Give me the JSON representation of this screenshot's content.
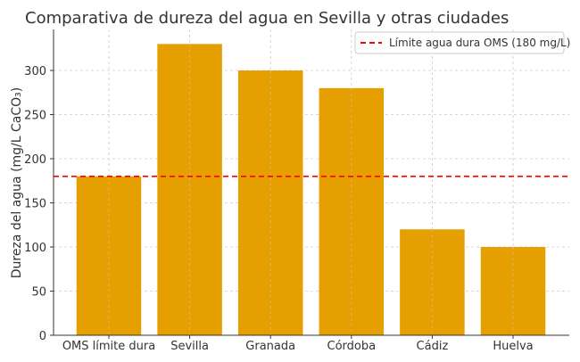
{
  "chart_data": {
    "type": "bar",
    "title": "Comparativa de dureza del agua en Sevilla y otras ciudades",
    "xlabel": "",
    "ylabel": "Dureza del agua (mg/L CaCO₃)",
    "categories": [
      "OMS límite dura",
      "Sevilla",
      "Granada",
      "Córdoba",
      "Cádiz",
      "Huelva"
    ],
    "values": [
      180,
      330,
      300,
      280,
      120,
      100
    ],
    "ylim": [
      0,
      346.5
    ],
    "yticks": [
      0,
      50,
      100,
      150,
      200,
      250,
      300
    ],
    "grid": true,
    "bar_color": "#E69F00",
    "reference_line": {
      "label": "Límite agua dura OMS (180 mg/L)",
      "value": 180,
      "color": "#FF0000",
      "style": "dashed"
    },
    "legend_position": "top-right"
  }
}
